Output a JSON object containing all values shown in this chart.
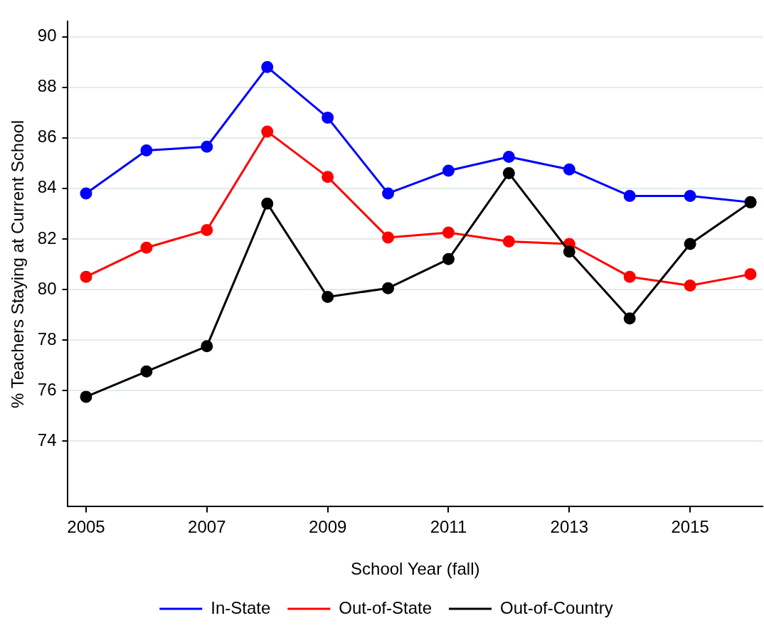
{
  "chart_data": {
    "type": "line",
    "xlabel": "School Year (fall)",
    "ylabel": "% Teachers Staying at Current School",
    "x": [
      2005,
      2006,
      2007,
      2008,
      2009,
      2010,
      2011,
      2012,
      2013,
      2014,
      2015,
      2016
    ],
    "series": [
      {
        "name": "In-State",
        "color": "#0000ff",
        "values": [
          83.8,
          85.5,
          85.65,
          88.8,
          86.8,
          83.8,
          84.7,
          85.25,
          84.75,
          83.7,
          83.7,
          83.45
        ]
      },
      {
        "name": "Out-of-State",
        "color": "#ff0000",
        "values": [
          80.5,
          81.65,
          82.35,
          86.25,
          84.45,
          82.05,
          82.25,
          81.9,
          81.8,
          80.5,
          80.15,
          80.6
        ]
      },
      {
        "name": "Out-of-Country",
        "color": "#000000",
        "values": [
          75.75,
          76.75,
          77.75,
          83.4,
          79.7,
          80.05,
          81.2,
          84.6,
          81.5,
          78.85,
          81.8,
          83.45
        ]
      }
    ],
    "xlim": [
      2004.7,
      2016.2
    ],
    "xticks": [
      2005,
      2007,
      2009,
      2011,
      2013,
      2015
    ],
    "ylim": [
      71.4,
      90.6
    ],
    "yticks": [
      74,
      76,
      78,
      80,
      82,
      84,
      86,
      88,
      90
    ],
    "grid": "y",
    "legend": "bottom",
    "marker": "circle",
    "line_style": "solid"
  }
}
